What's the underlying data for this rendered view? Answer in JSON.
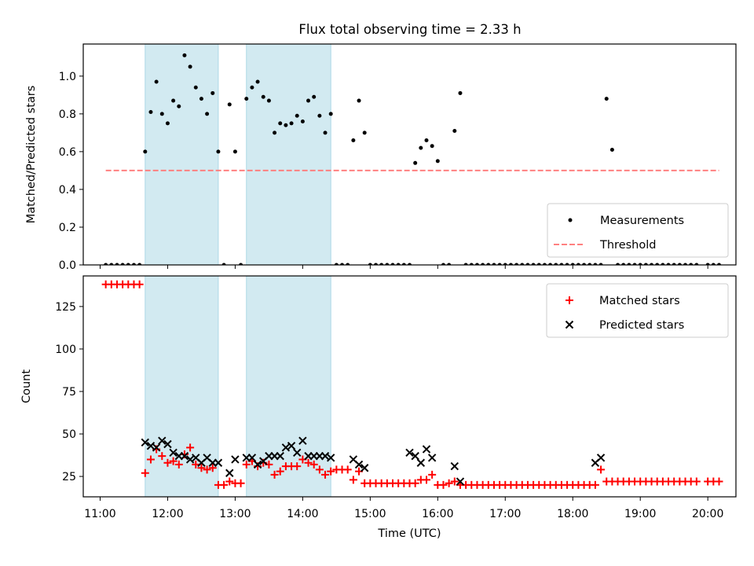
{
  "chart_data": [
    {
      "type": "scatter",
      "title": "Flux total observing time = 2.33 h",
      "ylabel": "Matched/Predicted stars",
      "xlabel": "",
      "ylim": [
        0,
        1.17
      ],
      "yticks": [
        "0.0",
        "0.2",
        "0.4",
        "0.6",
        "0.8",
        "1.0"
      ],
      "ytick_values": [
        0,
        0.2,
        0.4,
        0.6,
        0.8,
        1.0
      ],
      "shaded_intervals": [
        [
          "11:40",
          "12:45"
        ],
        [
          "13:10",
          "14:25"
        ]
      ],
      "shade_color": "#add8e6",
      "grid": false,
      "legend_position": "lower right",
      "series": [
        {
          "name": "Measurements",
          "marker": "dot",
          "color": "#000000",
          "x": [
            "11:05",
            "11:10",
            "11:15",
            "11:20",
            "11:25",
            "11:30",
            "11:35",
            "11:40",
            "11:45",
            "11:50",
            "11:55",
            "12:00",
            "12:05",
            "12:10",
            "12:15",
            "12:20",
            "12:25",
            "12:30",
            "12:35",
            "12:40",
            "12:45",
            "12:50",
            "12:55",
            "13:00",
            "13:05",
            "13:10",
            "13:15",
            "13:20",
            "13:25",
            "13:30",
            "13:35",
            "13:40",
            "13:45",
            "13:50",
            "13:55",
            "14:00",
            "14:05",
            "14:10",
            "14:15",
            "14:20",
            "14:25",
            "14:30",
            "14:35",
            "14:40",
            "14:45",
            "14:50",
            "14:55",
            "15:00",
            "15:05",
            "15:10",
            "15:15",
            "15:20",
            "15:25",
            "15:30",
            "15:35",
            "15:40",
            "15:45",
            "15:50",
            "15:55",
            "16:00",
            "16:05",
            "16:10",
            "16:15",
            "16:20",
            "16:25",
            "16:30",
            "16:35",
            "16:40",
            "16:45",
            "16:50",
            "16:55",
            "17:00",
            "17:05",
            "17:10",
            "17:15",
            "17:20",
            "17:25",
            "17:30",
            "17:35",
            "17:40",
            "17:45",
            "17:50",
            "17:55",
            "18:00",
            "18:05",
            "18:10",
            "18:15",
            "18:20",
            "18:25",
            "18:30",
            "18:35",
            "18:40",
            "18:45",
            "18:50",
            "18:55",
            "19:00",
            "19:05",
            "19:10",
            "19:15",
            "19:20",
            "19:25",
            "19:30",
            "19:35",
            "19:40",
            "19:45",
            "19:50",
            "20:00",
            "20:05",
            "20:10"
          ],
          "y": [
            0,
            0,
            0,
            0,
            0,
            0,
            0,
            0.6,
            0.81,
            0.97,
            0.8,
            0.75,
            0.87,
            0.84,
            1.11,
            1.05,
            0.94,
            0.88,
            0.8,
            0.91,
            0.6,
            0,
            0.85,
            0.6,
            0,
            0.88,
            0.94,
            0.97,
            0.89,
            0.87,
            0.7,
            0.75,
            0.74,
            0.75,
            0.79,
            0.76,
            0.87,
            0.89,
            0.79,
            0.7,
            0.8,
            0,
            0,
            0,
            0.66,
            0.87,
            0.7,
            0,
            0,
            0,
            0,
            0,
            0,
            0,
            0,
            0.54,
            0.62,
            0.66,
            0.63,
            0.55,
            0,
            0,
            0.71,
            0.91,
            0,
            0,
            0,
            0,
            0,
            0,
            0,
            0,
            0,
            0,
            0,
            0,
            0,
            0,
            0,
            0,
            0,
            0,
            0,
            0,
            0,
            0,
            0,
            0,
            0,
            0.88,
            0.61,
            0,
            0,
            0,
            0,
            0,
            0,
            0,
            0,
            0,
            0,
            0,
            0,
            0,
            0,
            0,
            0,
            0,
            0
          ]
        },
        {
          "name": "Threshold",
          "marker": "dashed-line",
          "color": "#ff8080",
          "x": [
            "11:05",
            "20:10"
          ],
          "y": [
            0.5,
            0.5
          ]
        }
      ]
    },
    {
      "type": "scatter",
      "title": "",
      "ylabel": "Count",
      "xlabel": "Time (UTC)",
      "ylim": [
        13,
        143
      ],
      "yticks": [
        "25",
        "50",
        "75",
        "100",
        "125"
      ],
      "ytick_values": [
        25,
        50,
        75,
        100,
        125
      ],
      "xticks": [
        "11:00",
        "12:00",
        "13:00",
        "14:00",
        "15:00",
        "16:00",
        "17:00",
        "18:00",
        "19:00",
        "20:00"
      ],
      "xlim": [
        "10:45",
        "20:25"
      ],
      "shaded_intervals": [
        [
          "11:40",
          "12:45"
        ],
        [
          "13:10",
          "14:25"
        ]
      ],
      "shade_color": "#add8e6",
      "grid": false,
      "legend_position": "upper right",
      "series": [
        {
          "name": "Matched stars",
          "marker": "plus",
          "color": "#ff0000",
          "x": [
            "11:05",
            "11:10",
            "11:15",
            "11:20",
            "11:25",
            "11:30",
            "11:35",
            "11:40",
            "11:45",
            "11:50",
            "11:55",
            "12:00",
            "12:05",
            "12:10",
            "12:15",
            "12:20",
            "12:25",
            "12:30",
            "12:35",
            "12:40",
            "12:45",
            "12:50",
            "12:55",
            "13:00",
            "13:05",
            "13:10",
            "13:15",
            "13:20",
            "13:25",
            "13:30",
            "13:35",
            "13:40",
            "13:45",
            "13:50",
            "13:55",
            "14:00",
            "14:05",
            "14:10",
            "14:15",
            "14:20",
            "14:25",
            "14:30",
            "14:35",
            "14:40",
            "14:45",
            "14:50",
            "14:55",
            "15:00",
            "15:05",
            "15:10",
            "15:15",
            "15:20",
            "15:25",
            "15:30",
            "15:35",
            "15:40",
            "15:45",
            "15:50",
            "15:55",
            "16:00",
            "16:05",
            "16:10",
            "16:15",
            "16:20",
            "16:25",
            "16:30",
            "16:35",
            "16:40",
            "16:45",
            "16:50",
            "16:55",
            "17:00",
            "17:05",
            "17:10",
            "17:15",
            "17:20",
            "17:25",
            "17:30",
            "17:35",
            "17:40",
            "17:45",
            "17:50",
            "17:55",
            "18:00",
            "18:05",
            "18:10",
            "18:15",
            "18:20",
            "18:25",
            "18:30",
            "18:35",
            "18:40",
            "18:45",
            "18:50",
            "18:55",
            "19:00",
            "19:05",
            "19:10",
            "19:15",
            "19:20",
            "19:25",
            "19:30",
            "19:35",
            "19:40",
            "19:45",
            "19:50",
            "20:00",
            "20:05",
            "20:10"
          ],
          "y": [
            138,
            138,
            138,
            138,
            138,
            138,
            138,
            27,
            35,
            41,
            37,
            33,
            34,
            32,
            38,
            42,
            32,
            30,
            29,
            30,
            20,
            20,
            22,
            21,
            21,
            32,
            34,
            31,
            33,
            32,
            26,
            28,
            31,
            31,
            31,
            35,
            33,
            32,
            29,
            26,
            28,
            29,
            29,
            29,
            23,
            28,
            21,
            21,
            21,
            21,
            21,
            21,
            21,
            21,
            21,
            21,
            23,
            23,
            26,
            20,
            20,
            21,
            22,
            20,
            20,
            20,
            20,
            20,
            20,
            20,
            20,
            20,
            20,
            20,
            20,
            20,
            20,
            20,
            20,
            20,
            20,
            20,
            20,
            20,
            20,
            20,
            20,
            20,
            29,
            22,
            22,
            22,
            22,
            22,
            22,
            22,
            22,
            22,
            22,
            22,
            22,
            22,
            22,
            22,
            22,
            22,
            22,
            22,
            22
          ]
        },
        {
          "name": "Predicted stars",
          "marker": "x",
          "color": "#000000",
          "x": [
            "11:40",
            "11:45",
            "11:50",
            "11:55",
            "12:00",
            "12:05",
            "12:10",
            "12:15",
            "12:20",
            "12:25",
            "12:30",
            "12:35",
            "12:40",
            "12:45",
            "12:55",
            "13:00",
            "13:10",
            "13:15",
            "13:20",
            "13:25",
            "13:30",
            "13:35",
            "13:40",
            "13:45",
            "13:50",
            "13:55",
            "14:00",
            "14:05",
            "14:10",
            "14:15",
            "14:20",
            "14:25",
            "14:45",
            "14:50",
            "14:55",
            "15:35",
            "15:40",
            "15:45",
            "15:50",
            "15:55",
            "16:15",
            "16:20",
            "18:20",
            "18:25"
          ],
          "y": [
            45,
            43,
            42,
            46,
            44,
            39,
            37,
            37,
            35,
            36,
            33,
            36,
            33,
            33,
            27,
            35,
            36,
            36,
            32,
            34,
            37,
            37,
            37,
            42,
            43,
            39,
            46,
            37,
            37,
            37,
            37,
            36,
            35,
            32,
            30,
            39,
            37,
            33,
            41,
            36,
            31,
            22,
            33,
            36
          ]
        }
      ]
    }
  ]
}
